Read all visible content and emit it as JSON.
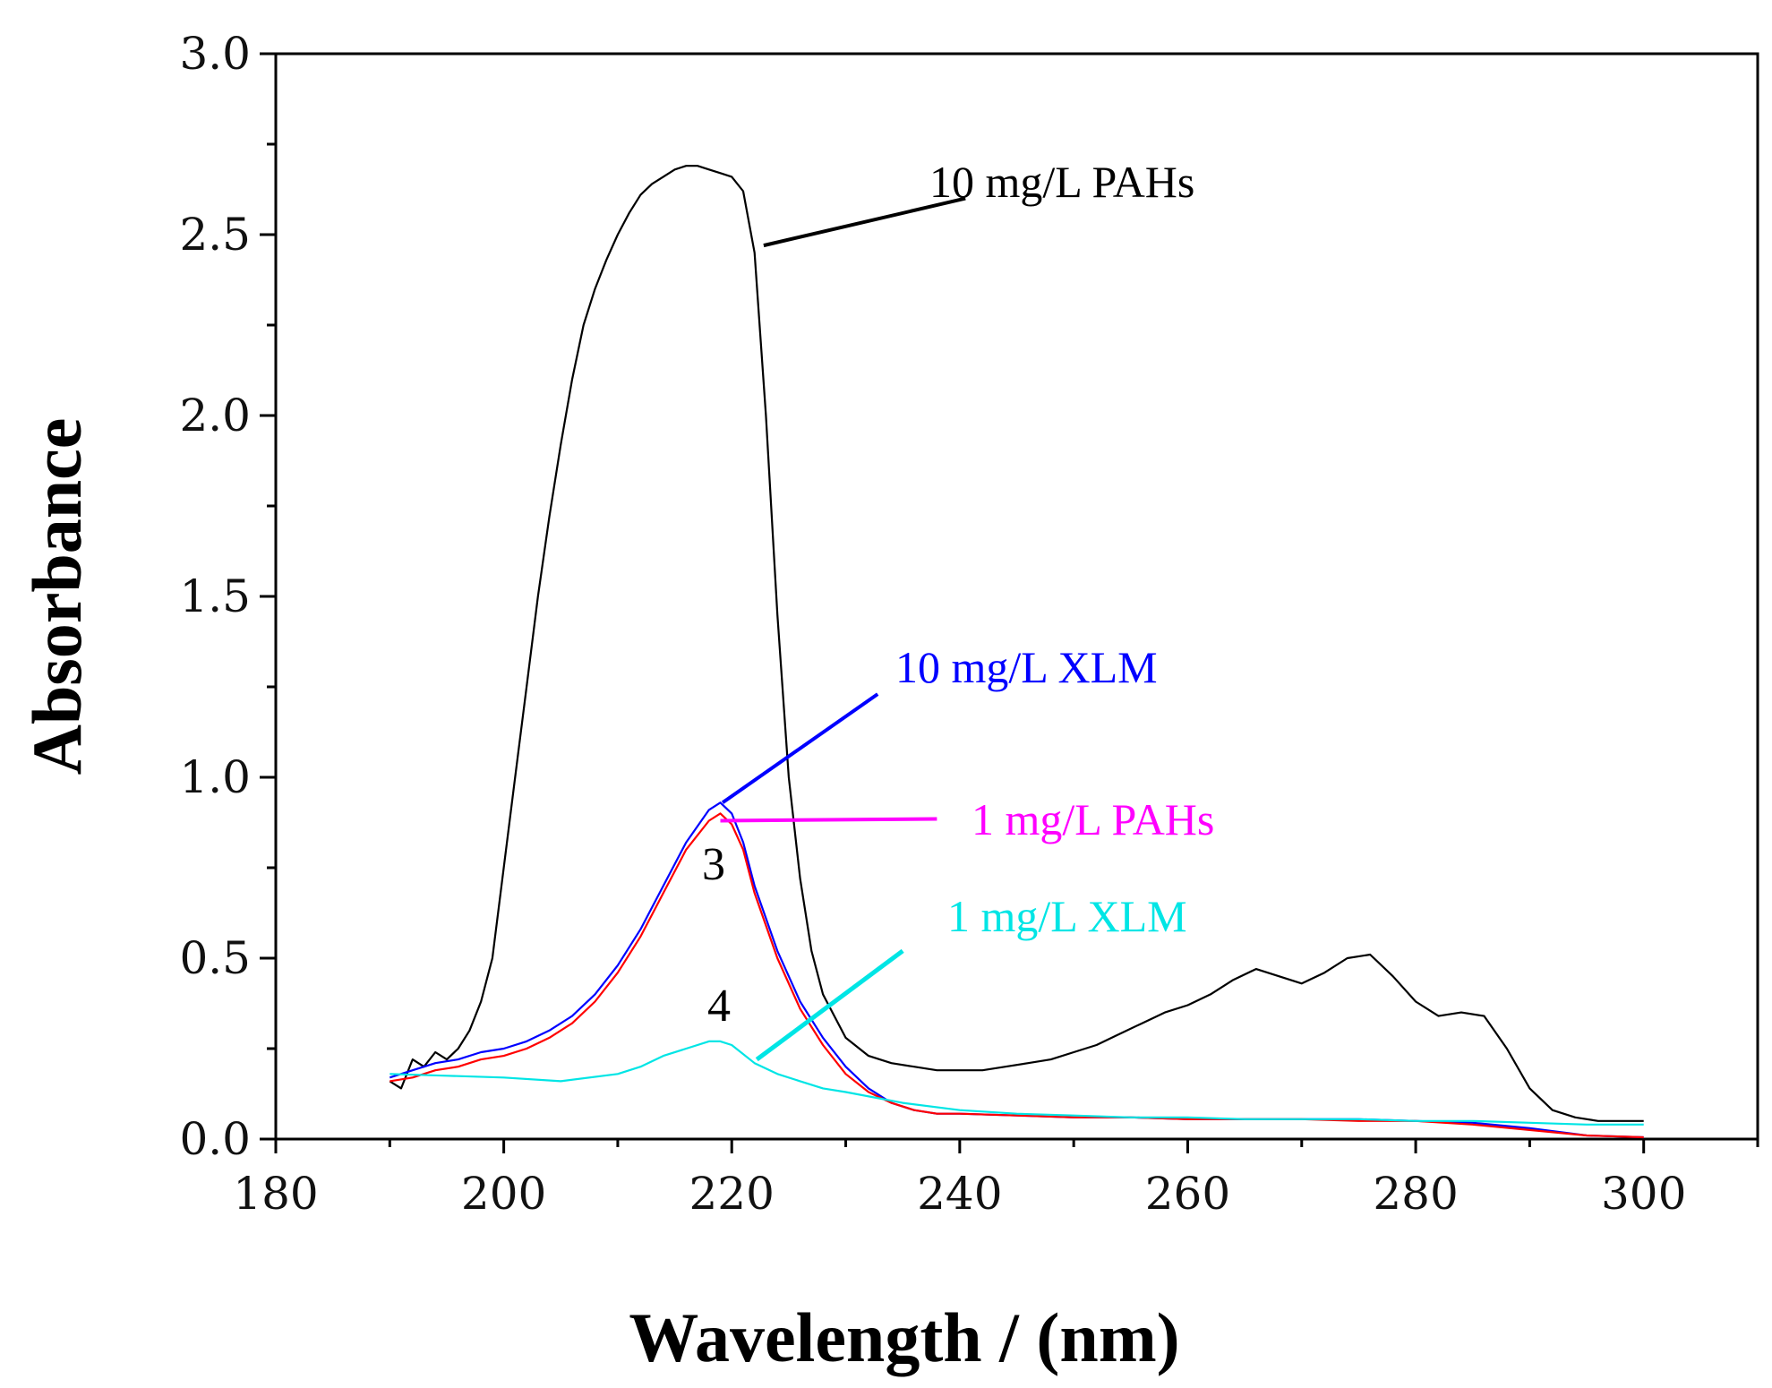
{
  "chart_data": {
    "type": "line",
    "xlabel": "Wavelength / (nm)",
    "ylabel": "Absorbance",
    "xlim": [
      180,
      310
    ],
    "ylim": [
      0,
      3.0
    ],
    "x_ticks": [
      "180",
      "200",
      "220",
      "240",
      "260",
      "280",
      "300"
    ],
    "y_ticks": [
      "0.0",
      "0.5",
      "1.0",
      "1.5",
      "2.0",
      "2.5",
      "3.0"
    ],
    "grid": false,
    "series": [
      {
        "name": "10 mg/L PAHs",
        "color": "#000000",
        "x": [
          190,
          191,
          192,
          193,
          194,
          195,
          196,
          197,
          198,
          199,
          200,
          201,
          202,
          203,
          204,
          205,
          206,
          207,
          208,
          209,
          210,
          211,
          212,
          213,
          214,
          215,
          216,
          217,
          218,
          219,
          220,
          221,
          222,
          223,
          224,
          225,
          226,
          227,
          228,
          230,
          232,
          234,
          236,
          238,
          240,
          242,
          244,
          246,
          248,
          250,
          252,
          254,
          256,
          258,
          260,
          262,
          264,
          266,
          268,
          270,
          272,
          274,
          276,
          278,
          280,
          282,
          284,
          286,
          288,
          290,
          292,
          294,
          296,
          298,
          300
        ],
        "y": [
          0.16,
          0.14,
          0.22,
          0.2,
          0.24,
          0.22,
          0.25,
          0.3,
          0.38,
          0.5,
          0.75,
          1.0,
          1.25,
          1.5,
          1.72,
          1.92,
          2.1,
          2.25,
          2.35,
          2.43,
          2.5,
          2.56,
          2.61,
          2.64,
          2.66,
          2.68,
          2.69,
          2.69,
          2.68,
          2.67,
          2.66,
          2.62,
          2.45,
          2.0,
          1.45,
          1.0,
          0.72,
          0.52,
          0.4,
          0.28,
          0.23,
          0.21,
          0.2,
          0.19,
          0.19,
          0.19,
          0.2,
          0.21,
          0.22,
          0.24,
          0.26,
          0.29,
          0.32,
          0.35,
          0.37,
          0.4,
          0.44,
          0.47,
          0.45,
          0.43,
          0.46,
          0.5,
          0.51,
          0.45,
          0.38,
          0.34,
          0.35,
          0.34,
          0.25,
          0.14,
          0.08,
          0.06,
          0.05,
          0.05,
          0.05
        ]
      },
      {
        "name": "10 mg/L XLM",
        "color": "#0000ff",
        "x": [
          190,
          192,
          194,
          196,
          198,
          200,
          202,
          204,
          206,
          208,
          210,
          212,
          214,
          216,
          218,
          219,
          220,
          221,
          222,
          224,
          226,
          228,
          230,
          232,
          234,
          236,
          238,
          240,
          245,
          250,
          255,
          260,
          265,
          270,
          275,
          280,
          285,
          290,
          295,
          300
        ],
        "y": [
          0.17,
          0.19,
          0.21,
          0.22,
          0.24,
          0.25,
          0.27,
          0.3,
          0.34,
          0.4,
          0.48,
          0.58,
          0.7,
          0.82,
          0.91,
          0.93,
          0.9,
          0.82,
          0.7,
          0.52,
          0.38,
          0.28,
          0.2,
          0.14,
          0.1,
          0.08,
          0.07,
          0.07,
          0.065,
          0.06,
          0.06,
          0.055,
          0.055,
          0.055,
          0.055,
          0.05,
          0.045,
          0.03,
          0.01,
          0.005
        ]
      },
      {
        "name": "1 mg/L PAHs",
        "color": "#ff0000",
        "x": [
          190,
          192,
          194,
          196,
          198,
          200,
          202,
          204,
          206,
          208,
          210,
          212,
          214,
          216,
          218,
          219,
          220,
          221,
          222,
          224,
          226,
          228,
          230,
          232,
          234,
          236,
          238,
          240,
          245,
          250,
          255,
          260,
          265,
          270,
          275,
          280,
          285,
          290,
          295,
          300
        ],
        "y": [
          0.16,
          0.17,
          0.19,
          0.2,
          0.22,
          0.23,
          0.25,
          0.28,
          0.32,
          0.38,
          0.46,
          0.56,
          0.68,
          0.8,
          0.88,
          0.9,
          0.87,
          0.8,
          0.68,
          0.5,
          0.36,
          0.26,
          0.18,
          0.13,
          0.1,
          0.08,
          0.07,
          0.07,
          0.065,
          0.06,
          0.06,
          0.055,
          0.055,
          0.055,
          0.05,
          0.05,
          0.04,
          0.025,
          0.01,
          0.005
        ]
      },
      {
        "name": "1 mg/L XLM",
        "color": "#00e5e5",
        "x": [
          190,
          195,
          200,
          205,
          210,
          212,
          214,
          216,
          218,
          219,
          220,
          222,
          224,
          226,
          228,
          230,
          235,
          240,
          245,
          250,
          255,
          260,
          265,
          270,
          275,
          280,
          285,
          290,
          295,
          300
        ],
        "y": [
          0.18,
          0.175,
          0.17,
          0.16,
          0.18,
          0.2,
          0.23,
          0.25,
          0.27,
          0.27,
          0.26,
          0.21,
          0.18,
          0.16,
          0.14,
          0.13,
          0.1,
          0.08,
          0.07,
          0.065,
          0.06,
          0.06,
          0.055,
          0.055,
          0.055,
          0.05,
          0.05,
          0.045,
          0.04,
          0.04
        ]
      }
    ],
    "annotations": [
      {
        "text": "10 mg/L PAHs",
        "color": "#000000"
      },
      {
        "text": "10 mg/L XLM",
        "color": "#0000ff"
      },
      {
        "text": "1 mg/L PAHs",
        "color": "#ff00ff"
      },
      {
        "text": "1 mg/L XLM",
        "color": "#00e5e5"
      },
      {
        "text": "3",
        "color": "#000000"
      },
      {
        "text": "4",
        "color": "#000000"
      }
    ]
  }
}
